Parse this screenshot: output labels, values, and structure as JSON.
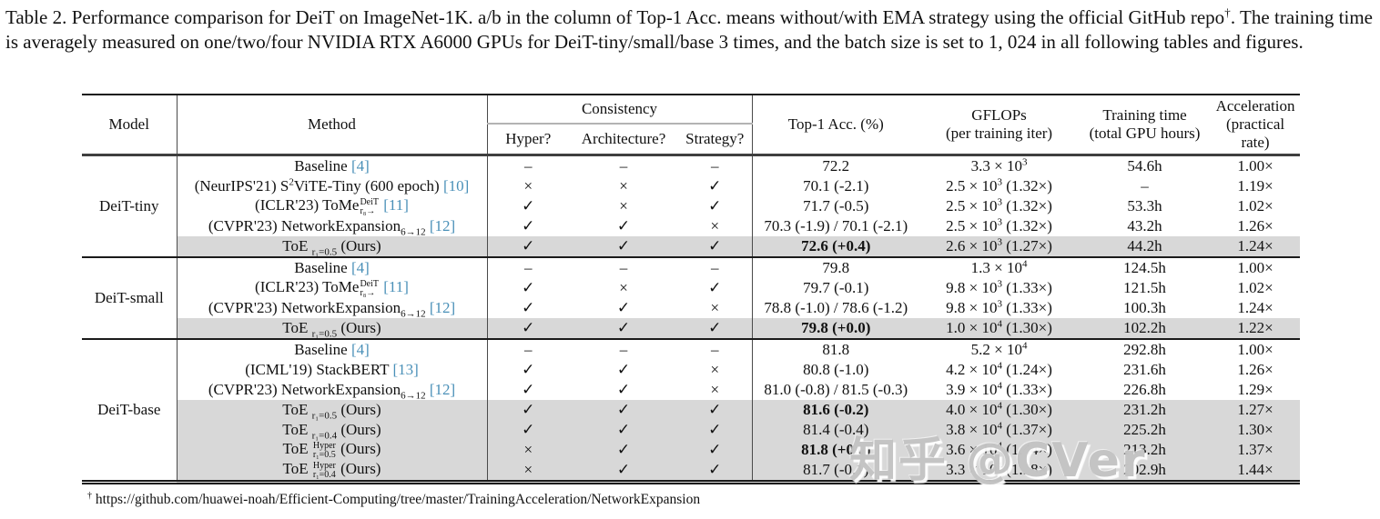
{
  "caption": {
    "p1": "Table 2. Performance comparison for DeiT on ImageNet-1K. a/b in the column of Top-1 Acc. means without/with EMA strategy using the official GitHub repo",
    "dagger": "†",
    "p2": ". The training time is averagely measured on one/two/four NVIDIA RTX A6000 GPUs for DeiT-tiny/small/base 3 times, and the batch size is set to 1, 024 in all following tables and figures."
  },
  "header": {
    "model": "Model",
    "method": "Method",
    "consistency": "Consistency",
    "sub_headers": [
      "Hyper?",
      "Architecture?",
      "Strategy?"
    ],
    "top1": "Top-1 Acc. (%)",
    "gflops": [
      "GFLOPs",
      "(per training iter)"
    ],
    "time": [
      "Training time",
      "(total GPU hours)"
    ],
    "accel": [
      "Acceleration",
      "(practical rate)"
    ]
  },
  "symbols": {
    "check": "✓",
    "cross": "×",
    "dash": "–"
  },
  "colors": {
    "ref": "#4a90b8",
    "highlight": "#d8d8d8"
  },
  "watermark": "知乎 @CVer",
  "footnote": {
    "dagger": "†",
    "url": "https://github.com/huawei-noah/Efficient-Computing/tree/master/TrainingAcceleration/NetworkExpansion"
  },
  "blocks": [
    {
      "model": "DeiT-tiny",
      "rows": [
        {
          "method": [
            {
              "t": "Baseline "
            },
            {
              "r": "[4]"
            }
          ],
          "checks": [
            "dash",
            "dash",
            "dash"
          ],
          "top1": "72.2",
          "top1_bold": false,
          "gflops": [
            {
              "t": "3.3 × 10"
            },
            {
              "u": "3"
            }
          ],
          "time": "54.6h",
          "accel": "1.00×",
          "highlight": false
        },
        {
          "method": [
            {
              "t": "(NeurIPS'21) S"
            },
            {
              "u": "2"
            },
            {
              "t": "ViTE-Tiny (600 epoch) "
            },
            {
              "r": "[10]"
            }
          ],
          "checks": [
            "cross",
            "cross",
            "check"
          ],
          "top1": "70.1 (-2.1)",
          "top1_bold": false,
          "gflops": [
            {
              "t": "2.5 × 10"
            },
            {
              "u": "3"
            },
            {
              "t": " (1.32×)"
            }
          ],
          "time": "–",
          "accel": "1.19×",
          "highlight": false
        },
        {
          "method": [
            {
              "t": "(ICLR'23) ToMe"
            },
            {
              "k": [
                "DeiT",
                "r₈→"
              ]
            },
            {
              "t": " "
            },
            {
              "r": "[11]"
            }
          ],
          "checks": [
            "check",
            "cross",
            "check"
          ],
          "top1": "71.7 (-0.5)",
          "top1_bold": false,
          "gflops": [
            {
              "t": "2.5 × 10"
            },
            {
              "u": "3"
            },
            {
              "t": " (1.32×)"
            }
          ],
          "time": "53.3h",
          "accel": "1.02×",
          "highlight": false
        },
        {
          "method": [
            {
              "t": "(CVPR'23) NetworkExpansion"
            },
            {
              "d": "6→12"
            },
            {
              "t": " "
            },
            {
              "r": "[12]"
            }
          ],
          "checks": [
            "check",
            "check",
            "cross"
          ],
          "top1": "70.3 (-1.9) / 70.1 (-2.1)",
          "top1_bold": false,
          "gflops": [
            {
              "t": "2.5 × 10"
            },
            {
              "u": "3"
            },
            {
              "t": " (1.32×)"
            }
          ],
          "time": "43.2h",
          "accel": "1.26×",
          "highlight": false
        },
        {
          "method": [
            {
              "t": "ToE "
            },
            {
              "d": "r₁=0.5"
            },
            {
              "t": " (Ours)"
            }
          ],
          "checks": [
            "check",
            "check",
            "check"
          ],
          "top1": "72.6 (+0.4)",
          "top1_bold": true,
          "gflops": [
            {
              "t": "2.6 × 10"
            },
            {
              "u": "3"
            },
            {
              "t": " (1.27×)"
            }
          ],
          "time": "44.2h",
          "accel": "1.24×",
          "highlight": true
        }
      ]
    },
    {
      "model": "DeiT-small",
      "rows": [
        {
          "method": [
            {
              "t": "Baseline "
            },
            {
              "r": "[4]"
            }
          ],
          "checks": [
            "dash",
            "dash",
            "dash"
          ],
          "top1": "79.8",
          "top1_bold": false,
          "gflops": [
            {
              "t": "1.3 × 10"
            },
            {
              "u": "4"
            }
          ],
          "time": "124.5h",
          "accel": "1.00×",
          "highlight": false
        },
        {
          "method": [
            {
              "t": "(ICLR'23) ToMe"
            },
            {
              "k": [
                "DeiT",
                "r₈→"
              ]
            },
            {
              "t": " "
            },
            {
              "r": "[11]"
            }
          ],
          "checks": [
            "check",
            "cross",
            "check"
          ],
          "top1": "79.7 (-0.1)",
          "top1_bold": false,
          "gflops": [
            {
              "t": "9.8 × 10"
            },
            {
              "u": "3"
            },
            {
              "t": " (1.33×)"
            }
          ],
          "time": "121.5h",
          "accel": "1.02×",
          "highlight": false
        },
        {
          "method": [
            {
              "t": "(CVPR'23) NetworkExpansion"
            },
            {
              "d": "6→12"
            },
            {
              "t": " "
            },
            {
              "r": "[12]"
            }
          ],
          "checks": [
            "check",
            "check",
            "cross"
          ],
          "top1": "78.8 (-1.0) / 78.6 (-1.2)",
          "top1_bold": false,
          "gflops": [
            {
              "t": "9.8 × 10"
            },
            {
              "u": "3"
            },
            {
              "t": " (1.33×)"
            }
          ],
          "time": "100.3h",
          "accel": "1.24×",
          "highlight": false
        },
        {
          "method": [
            {
              "t": "ToE "
            },
            {
              "d": "r₁=0.5"
            },
            {
              "t": " (Ours)"
            }
          ],
          "checks": [
            "check",
            "check",
            "check"
          ],
          "top1": "79.8 (+0.0)",
          "top1_bold": true,
          "gflops": [
            {
              "t": "1.0 × 10"
            },
            {
              "u": "4"
            },
            {
              "t": " (1.30×)"
            }
          ],
          "time": "102.2h",
          "accel": "1.22×",
          "highlight": true
        }
      ]
    },
    {
      "model": "DeiT-base",
      "rows": [
        {
          "method": [
            {
              "t": "Baseline "
            },
            {
              "r": "[4]"
            }
          ],
          "checks": [
            "dash",
            "dash",
            "dash"
          ],
          "top1": "81.8",
          "top1_bold": false,
          "gflops": [
            {
              "t": "5.2 × 10"
            },
            {
              "u": "4"
            }
          ],
          "time": "292.8h",
          "accel": "1.00×",
          "highlight": false
        },
        {
          "method": [
            {
              "t": "(ICML'19) StackBERT "
            },
            {
              "r": "[13]"
            }
          ],
          "checks": [
            "check",
            "check",
            "cross"
          ],
          "top1": "80.8 (-1.0)",
          "top1_bold": false,
          "gflops": [
            {
              "t": "4.2 × 10"
            },
            {
              "u": "4"
            },
            {
              "t": " (1.24×)"
            }
          ],
          "time": "231.6h",
          "accel": "1.26×",
          "highlight": false
        },
        {
          "method": [
            {
              "t": "(CVPR'23) NetworkExpansion"
            },
            {
              "d": "6→12"
            },
            {
              "t": " "
            },
            {
              "r": "[12]"
            }
          ],
          "checks": [
            "check",
            "check",
            "cross"
          ],
          "top1": "81.0 (-0.8) / 81.5 (-0.3)",
          "top1_bold": false,
          "gflops": [
            {
              "t": "3.9 × 10"
            },
            {
              "u": "4"
            },
            {
              "t": " (1.33×)"
            }
          ],
          "time": "226.8h",
          "accel": "1.29×",
          "highlight": false
        },
        {
          "method": [
            {
              "t": "ToE "
            },
            {
              "d": "r₁=0.5"
            },
            {
              "t": " (Ours)"
            }
          ],
          "checks": [
            "check",
            "check",
            "check"
          ],
          "top1": "81.6 (-0.2)",
          "top1_bold": true,
          "gflops": [
            {
              "t": "4.0 × 10"
            },
            {
              "u": "4"
            },
            {
              "t": " (1.30×)"
            }
          ],
          "time": "231.2h",
          "accel": "1.27×",
          "highlight": true
        },
        {
          "method": [
            {
              "t": "ToE "
            },
            {
              "d": "r₁=0.4"
            },
            {
              "t": " (Ours)"
            }
          ],
          "checks": [
            "check",
            "check",
            "check"
          ],
          "top1": "81.4 (-0.4)",
          "top1_bold": false,
          "gflops": [
            {
              "t": "3.8 × 10"
            },
            {
              "u": "4"
            },
            {
              "t": " (1.37×)"
            }
          ],
          "time": "225.2h",
          "accel": "1.30×",
          "highlight": true
        },
        {
          "method": [
            {
              "t": "ToE "
            },
            {
              "k": [
                "Hyper",
                "r₁=0.5"
              ]
            },
            {
              "t": " (Ours)"
            }
          ],
          "checks": [
            "cross",
            "check",
            "check"
          ],
          "top1": "81.8 (+0.0)",
          "top1_bold": true,
          "gflops": [
            {
              "t": "3.6 × 10"
            },
            {
              "u": "4"
            },
            {
              "t": " (1.44×)"
            }
          ],
          "time": "213.2h",
          "accel": "1.37×",
          "highlight": true
        },
        {
          "method": [
            {
              "t": "ToE "
            },
            {
              "k": [
                "Hyper",
                "r₁=0.4"
              ]
            },
            {
              "t": " (Ours)"
            }
          ],
          "checks": [
            "cross",
            "check",
            "check"
          ],
          "top1": "81.7 (-0.1)",
          "top1_bold": false,
          "gflops": [
            {
              "t": "3.3 × 10"
            },
            {
              "u": "4"
            },
            {
              "t": " (1.58×)"
            }
          ],
          "time": "202.9h",
          "accel": "1.44×",
          "highlight": true
        }
      ]
    }
  ]
}
